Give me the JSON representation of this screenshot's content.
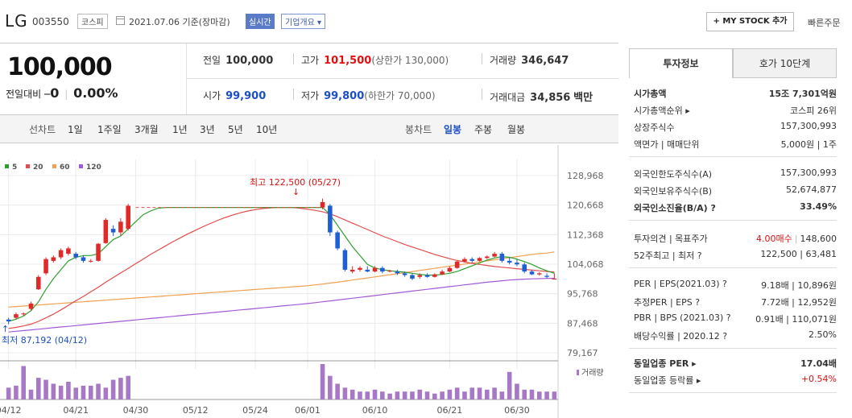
{
  "header": {
    "name": "LG",
    "code": "003550",
    "market": "코스피",
    "date": "2021.07.06 기준(장마감)",
    "realtime": "실시간",
    "corp_overview": "기업개요 ▾",
    "mystock": "+ MY STOCK 추가",
    "quick_order": "빠른주문"
  },
  "summary": {
    "price": "100,000",
    "change_label": "전일대비",
    "change_symbol": "━",
    "change_value": "0",
    "change_pct": "0.00%",
    "prev_close_label": "전일",
    "prev_close": "100,000",
    "high_label": "고가",
    "high": "101,500",
    "upper_limit": "(상한가 130,000)",
    "volume_label": "거래량",
    "volume": "346,647",
    "open_label": "시가",
    "open": "99,900",
    "low_label": "저가",
    "low": "99,800",
    "lower_limit": "(하한가 70,000)",
    "amount_label": "거래대금",
    "amount": "34,856",
    "amount_unit": "백만"
  },
  "tabs": {
    "line_label": "선차트",
    "periods": [
      "1일",
      "1주일",
      "3개월",
      "1년",
      "3년",
      "5년",
      "10년"
    ],
    "candle_label": "봉차트",
    "candle_periods": [
      "일봉",
      "주봉",
      "월봉"
    ],
    "candle_active": "일봉"
  },
  "chart_data": {
    "type": "candlestick",
    "legend": [
      "5",
      "20",
      "60",
      "120"
    ],
    "legend_colors": [
      "#2ca02c",
      "#e24b4b",
      "#f0a050",
      "#a35ad6"
    ],
    "y_ticks": [
      "128,968",
      "120,668",
      "112,368",
      "104,068",
      "95,768",
      "87,468",
      "79,167"
    ],
    "y_tick_values": [
      128968,
      120668,
      112368,
      104068,
      95768,
      87468,
      79167
    ],
    "ylim": [
      79167,
      128968
    ],
    "x_ticks": [
      "04/12",
      "04/21",
      "04/30",
      "05/12",
      "05/24",
      "06/01",
      "06/10",
      "06/21",
      "06/30"
    ],
    "max_label": "최고 122,500 (05/27)",
    "min_label": "최저 87,192 (04/12)",
    "volume_label": "거래량",
    "candles": [
      [
        88500,
        89000,
        87192,
        88000
      ],
      [
        89000,
        90500,
        88500,
        90000
      ],
      [
        90000,
        90500,
        89500,
        90200
      ],
      [
        91500,
        93500,
        91000,
        93000
      ],
      [
        97000,
        101000,
        96800,
        100500
      ],
      [
        101500,
        106000,
        101000,
        105500
      ],
      [
        105000,
        106500,
        104500,
        106000
      ],
      [
        106000,
        108500,
        105500,
        108000
      ],
      [
        107000,
        109000,
        106500,
        108500
      ],
      [
        107000,
        107500,
        105500,
        106000
      ],
      [
        106000,
        106500,
        104500,
        105000
      ],
      [
        105000,
        105500,
        104500,
        105000
      ],
      [
        105000,
        110000,
        104800,
        109800
      ],
      [
        110000,
        117000,
        109800,
        116500
      ],
      [
        114000,
        115000,
        112000,
        113000
      ],
      [
        113000,
        117000,
        112000,
        116000
      ],
      [
        114000,
        121000,
        113500,
        120500
      ],
      [
        null
      ],
      [
        null
      ],
      [
        null
      ],
      [
        null
      ],
      [
        null
      ],
      [
        null
      ],
      [
        null
      ],
      [
        null
      ],
      [
        null
      ],
      [
        null
      ],
      [
        null
      ],
      [
        null
      ],
      [
        null
      ],
      [
        null
      ],
      [
        null
      ],
      [
        null
      ],
      [
        null
      ],
      [
        null
      ],
      [
        null
      ],
      [
        null
      ],
      [
        null
      ],
      [
        null
      ],
      [
        null
      ],
      [
        null
      ],
      [
        null
      ],
      [
        120000,
        122500,
        119500,
        121500
      ],
      [
        120500,
        121000,
        112000,
        113000
      ],
      [
        113000,
        113500,
        108000,
        108500
      ],
      [
        108000,
        108500,
        102000,
        102500
      ],
      [
        102000,
        103500,
        101500,
        102500
      ],
      [
        102500,
        103500,
        102000,
        103000
      ],
      [
        102500,
        103500,
        101800,
        102000
      ],
      [
        102000,
        103500,
        101800,
        103000
      ],
      [
        103000,
        103500,
        101500,
        102000
      ],
      [
        102000,
        102500,
        101800,
        102200
      ],
      [
        102000,
        102500,
        101000,
        101500
      ],
      [
        101500,
        102000,
        100500,
        101000
      ],
      [
        101000,
        101500,
        99600,
        100000
      ],
      [
        100500,
        101500,
        100000,
        101000
      ],
      [
        101000,
        101500,
        100300,
        100500
      ],
      [
        100500,
        101500,
        100300,
        101200
      ],
      [
        101200,
        102500,
        101000,
        102000
      ],
      [
        102000,
        103500,
        101800,
        103000
      ],
      [
        103000,
        105000,
        102800,
        104800
      ],
      [
        104800,
        106000,
        104500,
        105500
      ],
      [
        105500,
        106000,
        104500,
        105000
      ],
      [
        105000,
        106000,
        104800,
        105800
      ],
      [
        105800,
        106500,
        105500,
        106200
      ],
      [
        106200,
        107500,
        106000,
        107000
      ],
      [
        107000,
        107500,
        104500,
        105000
      ],
      [
        105000,
        106000,
        104000,
        104500
      ],
      [
        104500,
        105500,
        103500,
        104000
      ],
      [
        104000,
        104500,
        101500,
        102000
      ],
      [
        102000,
        102500,
        101000,
        101200
      ],
      [
        101200,
        101800,
        100800,
        101500
      ],
      [
        100800,
        101500,
        100000,
        100500
      ],
      [
        99900,
        101500,
        99800,
        100000
      ]
    ],
    "ma5": [
      88000,
      88600,
      89500,
      91000,
      93500,
      97000,
      100000,
      102500,
      105000,
      106000,
      106500,
      106500,
      107000,
      109000,
      111000,
      112000,
      114000,
      116000,
      118000,
      119000,
      119800,
      120000,
      120000,
      120000,
      120000,
      120000,
      120000,
      120000,
      120000,
      120000,
      120000,
      120000,
      120000,
      120000,
      120000,
      120000,
      120000,
      120000,
      120000,
      120000,
      120000,
      120000,
      120000,
      118000,
      115000,
      112000,
      109000,
      106500,
      104000,
      103000,
      102500,
      102200,
      102000,
      101800,
      101500,
      101200,
      101000,
      101000,
      101200,
      101500,
      102000,
      102800,
      103600,
      104400,
      105200,
      105800,
      106200,
      106000,
      105500,
      104800,
      104000,
      103000,
      102200,
      101500
    ],
    "ma20": [
      86000,
      86300,
      86700,
      87200,
      88000,
      89000,
      90000,
      91200,
      92500,
      93800,
      95000,
      96300,
      97600,
      99000,
      100300,
      101600,
      102900,
      104200,
      105500,
      106800,
      108000,
      109200,
      110400,
      111500,
      112600,
      113600,
      114600,
      115500,
      116400,
      117200,
      117900,
      118500,
      119000,
      119400,
      119700,
      119900,
      120000,
      120000,
      120000,
      119800,
      119500,
      119200,
      118800,
      118200,
      117400,
      116500,
      115600,
      114700,
      113800,
      112900,
      112000,
      111200,
      110400,
      109600,
      108900,
      108200,
      107500,
      106800,
      106200,
      105600,
      105100,
      104700,
      104300,
      104000,
      103700,
      103400,
      103200,
      103000,
      102800,
      102600,
      102400,
      102200,
      102000,
      101900
    ],
    "ma60": [
      92000,
      92150,
      92300,
      92450,
      92600,
      92750,
      92900,
      93050,
      93200,
      93350,
      93500,
      93650,
      93800,
      93950,
      94100,
      94250,
      94400,
      94550,
      94700,
      94850,
      95000,
      95150,
      95300,
      95450,
      95600,
      95750,
      95900,
      96050,
      96200,
      96350,
      96500,
      96650,
      96800,
      96950,
      97100,
      97250,
      97400,
      97550,
      97700,
      97850,
      98000,
      98250,
      98500,
      98750,
      99000,
      99300,
      99600,
      99900,
      100200,
      100500,
      100800,
      101100,
      101400,
      101700,
      102000,
      102300,
      102600,
      102900,
      103200,
      103500,
      103800,
      104100,
      104400,
      104700,
      105000,
      105300,
      105600,
      105900,
      106200,
      106500,
      106800,
      107000,
      107200,
      107500
    ],
    "ma120": [
      85000,
      85200,
      85400,
      85600,
      85800,
      86000,
      86200,
      86400,
      86600,
      86800,
      87000,
      87200,
      87400,
      87600,
      87800,
      88000,
      88200,
      88400,
      88600,
      88800,
      89000,
      89200,
      89400,
      89600,
      89800,
      90000,
      90200,
      90400,
      90600,
      90800,
      91000,
      91200,
      91400,
      91600,
      91800,
      92000,
      92200,
      92400,
      92600,
      92800,
      93000,
      93250,
      93500,
      93750,
      94000,
      94250,
      94500,
      94750,
      95000,
      95250,
      95500,
      95750,
      96000,
      96250,
      96500,
      96750,
      97000,
      97250,
      97500,
      97750,
      98000,
      98250,
      98500,
      98750,
      99000,
      99200,
      99400,
      99600,
      99750,
      99850,
      99950,
      100000,
      100050,
      100100
    ],
    "volumes": [
      30,
      35,
      85,
      25,
      55,
      50,
      40,
      35,
      45,
      30,
      35,
      35,
      40,
      30,
      50,
      55,
      60,
      0,
      0,
      0,
      0,
      0,
      0,
      0,
      0,
      0,
      0,
      0,
      0,
      0,
      0,
      0,
      0,
      0,
      0,
      0,
      0,
      0,
      0,
      0,
      0,
      0,
      90,
      60,
      40,
      30,
      25,
      20,
      20,
      25,
      20,
      15,
      20,
      20,
      20,
      25,
      20,
      15,
      20,
      25,
      30,
      20,
      30,
      30,
      25,
      30,
      20,
      70,
      40,
      25,
      25,
      20,
      20,
      20
    ]
  },
  "right_panel": {
    "tab_active": "투자정보",
    "tab_other": "호가 10단계",
    "sec1": [
      {
        "label": "시가총액",
        "value": "15조 7,301억원",
        "bold": true
      },
      {
        "label": "시가총액순위 ▸",
        "value": "코스피 26위"
      },
      {
        "label": "상장주식수",
        "value": "157,300,993"
      },
      {
        "label": "액면가 | 매매단위",
        "value": "5,000원 | 1주"
      }
    ],
    "sec2": [
      {
        "label": "외국인한도주식수(A)",
        "value": "157,300,993"
      },
      {
        "label": "외국인보유주식수(B)",
        "value": "52,674,877"
      },
      {
        "label": "외국인소진율(B/A) ?",
        "value": "33.49%",
        "bold": true
      }
    ],
    "sec3": [
      {
        "label": "투자의견 | 목표주가",
        "value_red": "4.00매수",
        "value": "148,600"
      },
      {
        "label": "52주최고 | 최저 ?",
        "value": "122,500 | 63,481"
      }
    ],
    "sec4": [
      {
        "label": "PER | EPS(2021.03) ?",
        "value": "9.18배 | 10,896원"
      },
      {
        "label": "추정PER | EPS ?",
        "value": "7.72배 | 12,952원"
      },
      {
        "label": "PBR | BPS (2021.03) ?",
        "value": "0.91배 | 110,071원"
      },
      {
        "label": "배당수익률 | 2020.12 ?",
        "value": "2.50%"
      }
    ],
    "sec5": [
      {
        "label": "동일업종 PER ▸",
        "value": "17.04배",
        "bold": true
      },
      {
        "label": "동일업종 등락률 ▸",
        "value": "+0.54%",
        "red": true
      }
    ]
  }
}
